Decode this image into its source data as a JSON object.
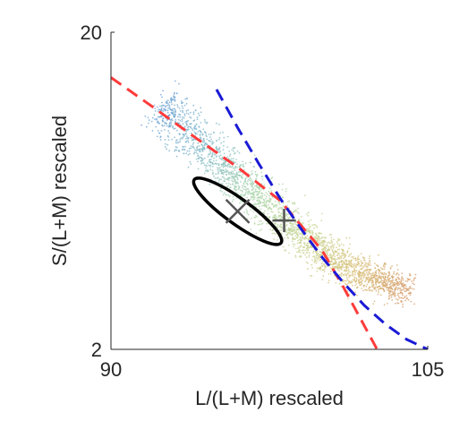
{
  "chart_data": {
    "type": "scatter",
    "title": "",
    "xlabel": "L/(L+M) rescaled",
    "ylabel": "S/(L+M) rescaled",
    "xlim": [
      90,
      105
    ],
    "ylim": [
      2,
      20
    ],
    "yscale": "log",
    "xticks": [
      90,
      105
    ],
    "xtick_labels": [
      "90",
      "105"
    ],
    "yticks": [
      2,
      20
    ],
    "ytick_labels": [
      "2",
      "20"
    ],
    "grid": false,
    "legend": "none",
    "cloud_spine": [
      {
        "x": 92.2,
        "y": 11.5
      },
      {
        "x": 93.0,
        "y": 10.5
      },
      {
        "x": 94.0,
        "y": 9.2
      },
      {
        "x": 95.0,
        "y": 7.9
      },
      {
        "x": 96.0,
        "y": 6.9
      },
      {
        "x": 97.0,
        "y": 6.0
      },
      {
        "x": 98.0,
        "y": 5.2
      },
      {
        "x": 99.0,
        "y": 4.6
      },
      {
        "x": 100.0,
        "y": 4.05
      },
      {
        "x": 101.0,
        "y": 3.7
      },
      {
        "x": 102.0,
        "y": 3.45
      },
      {
        "x": 103.0,
        "y": 3.25
      },
      {
        "x": 104.2,
        "y": 3.05
      }
    ],
    "cloud_colors": [
      "#6a9fd4",
      "#7fb8c8",
      "#a8d4a8",
      "#c6d38f",
      "#d9c07a",
      "#d59a6a"
    ],
    "ellipse": {
      "center_x": 96.0,
      "center_y": 5.45,
      "color": "#000000"
    },
    "markers": [
      {
        "symbol": "x",
        "x": 96.0,
        "y": 5.45,
        "color": "#555555"
      },
      {
        "symbol": "+",
        "x": 98.2,
        "y": 5.1,
        "color": "#555555"
      }
    ],
    "lines": [
      {
        "style": "dashed",
        "color": "#ff3b3b",
        "points": [
          {
            "x": 90.0,
            "y": 14.4
          },
          {
            "x": 92.0,
            "y": 11.6
          },
          {
            "x": 94.0,
            "y": 9.3
          },
          {
            "x": 96.0,
            "y": 7.5
          },
          {
            "x": 98.0,
            "y": 5.9
          },
          {
            "x": 100.0,
            "y": 4.1
          },
          {
            "x": 101.0,
            "y": 3.15
          },
          {
            "x": 102.6,
            "y": 2.0
          }
        ]
      },
      {
        "style": "dashed",
        "color": "#1a1ad6",
        "points": [
          {
            "x": 95.0,
            "y": 13.2
          },
          {
            "x": 96.0,
            "y": 10.0
          },
          {
            "x": 97.0,
            "y": 7.7
          },
          {
            "x": 98.0,
            "y": 6.0
          },
          {
            "x": 99.0,
            "y": 4.8
          },
          {
            "x": 100.0,
            "y": 3.9
          },
          {
            "x": 101.0,
            "y": 3.25
          },
          {
            "x": 102.0,
            "y": 2.75
          },
          {
            "x": 103.0,
            "y": 2.4
          },
          {
            "x": 104.0,
            "y": 2.15
          },
          {
            "x": 105.0,
            "y": 2.0
          }
        ]
      }
    ]
  }
}
